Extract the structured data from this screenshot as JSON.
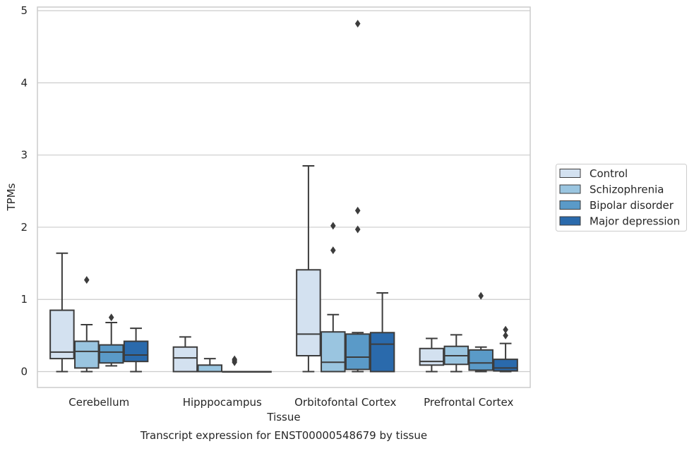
{
  "chart_data": {
    "type": "box",
    "title": "",
    "caption": "Transcript expression for ENST00000548679 by tissue",
    "xlabel": "Tissue",
    "ylabel": "TPMs",
    "categories": [
      "Cerebellum",
      "Hipppocampus",
      "Orbitofontal Cortex",
      "Prefrontal Cortex"
    ],
    "ylim": [
      -0.22,
      5.05
    ],
    "yticks": [
      0,
      1,
      2,
      3,
      4,
      5
    ],
    "grid": "horizontal",
    "legend_position": "right",
    "series": [
      {
        "name": "Control",
        "color": "#d3e1f0",
        "boxes": [
          {
            "min": 0.0,
            "q1": 0.18,
            "median": 0.27,
            "q3": 0.85,
            "max": 1.64,
            "outliers": []
          },
          {
            "min": 0.0,
            "q1": 0.0,
            "median": 0.19,
            "q3": 0.34,
            "max": 0.48,
            "outliers": []
          },
          {
            "min": 0.0,
            "q1": 0.22,
            "median": 0.52,
            "q3": 1.41,
            "max": 2.85,
            "outliers": []
          },
          {
            "min": 0.0,
            "q1": 0.09,
            "median": 0.14,
            "q3": 0.32,
            "max": 0.46,
            "outliers": []
          }
        ]
      },
      {
        "name": "Schizophrenia",
        "color": "#9ac5e0",
        "boxes": [
          {
            "min": 0.0,
            "q1": 0.05,
            "median": 0.28,
            "q3": 0.42,
            "max": 0.65,
            "outliers": [
              1.27
            ]
          },
          {
            "min": 0.0,
            "q1": 0.0,
            "median": 0.0,
            "q3": 0.09,
            "max": 0.18,
            "outliers": []
          },
          {
            "min": 0.0,
            "q1": 0.0,
            "median": 0.13,
            "q3": 0.55,
            "max": 0.79,
            "outliers": [
              1.68,
              2.02
            ]
          },
          {
            "min": 0.0,
            "q1": 0.1,
            "median": 0.22,
            "q3": 0.35,
            "max": 0.51,
            "outliers": []
          }
        ]
      },
      {
        "name": "Bipolar disorder",
        "color": "#5a9ac8",
        "boxes": [
          {
            "min": 0.08,
            "q1": 0.12,
            "median": 0.27,
            "q3": 0.37,
            "max": 0.68,
            "outliers": [
              0.75
            ]
          },
          {
            "min": 0.0,
            "q1": 0.0,
            "median": 0.0,
            "q3": 0.0,
            "max": 0.0,
            "outliers": [
              0.13,
              0.15,
              0.17
            ]
          },
          {
            "min": 0.0,
            "q1": 0.03,
            "median": 0.2,
            "q3": 0.52,
            "max": 0.54,
            "outliers": [
              1.97,
              2.23,
              4.82
            ]
          },
          {
            "min": 0.0,
            "q1": 0.02,
            "median": 0.12,
            "q3": 0.3,
            "max": 0.34,
            "outliers": [
              1.05
            ]
          }
        ]
      },
      {
        "name": "Major depression",
        "color": "#2a6aac",
        "boxes": [
          {
            "min": 0.0,
            "q1": 0.14,
            "median": 0.23,
            "q3": 0.42,
            "max": 0.6,
            "outliers": []
          },
          {
            "min": 0.0,
            "q1": 0.0,
            "median": 0.0,
            "q3": 0.0,
            "max": 0.0,
            "outliers": []
          },
          {
            "min": 0.0,
            "q1": 0.0,
            "median": 0.38,
            "q3": 0.54,
            "max": 1.09,
            "outliers": []
          },
          {
            "min": 0.0,
            "q1": 0.01,
            "median": 0.05,
            "q3": 0.17,
            "max": 0.39,
            "outliers": [
              0.5,
              0.58
            ]
          }
        ]
      }
    ]
  }
}
